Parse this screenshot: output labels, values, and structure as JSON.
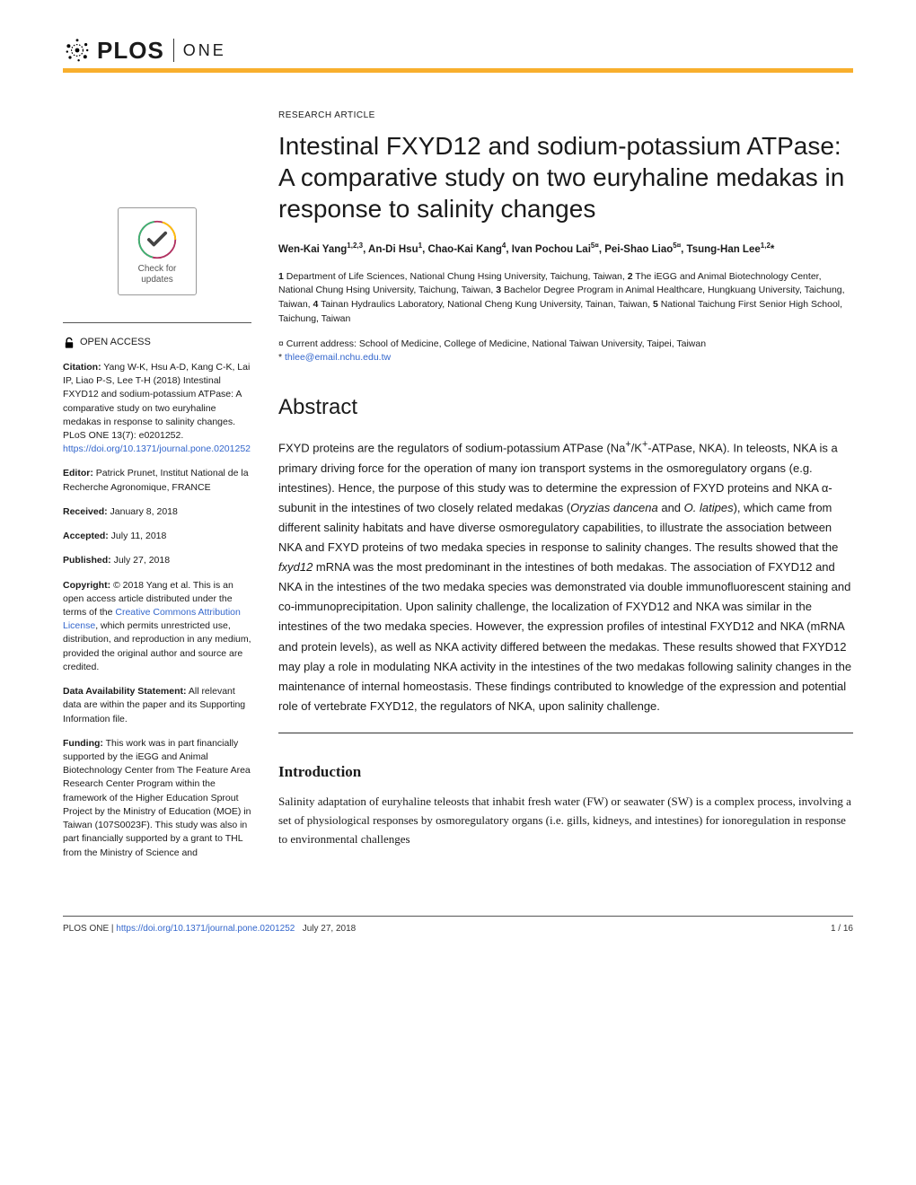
{
  "journal": {
    "brand": "PLOS",
    "sub": "ONE"
  },
  "article": {
    "type": "RESEARCH ARTICLE",
    "title": "Intestinal FXYD12 and sodium-potassium ATPase: A comparative study on two euryhaline medakas in response to salinity changes",
    "authors_html": "Wen-Kai Yang<sup>1,2,3</sup>, An-Di Hsu<sup>1</sup>, Chao-Kai Kang<sup>4</sup>, Ivan Pochou Lai<sup>5¤</sup>, Pei-Shao Liao<sup>5¤</sup>, Tsung-Han Lee<sup>1,2</sup>*",
    "affiliations_html": "<b>1</b> Department of Life Sciences, National Chung Hsing University, Taichung, Taiwan, <b>2</b> The iEGG and Animal Biotechnology Center, National Chung Hsing University, Taichung, Taiwan, <b>3</b> Bachelor Degree Program in Animal Healthcare, Hungkuang University, Taichung, Taiwan, <b>4</b> Tainan Hydraulics Laboratory, National Cheng Kung University, Tainan, Taiwan, <b>5</b> National Taichung First Senior High School, Taichung, Taiwan",
    "current_address": "¤ Current address: School of Medicine, College of Medicine, National Taiwan University, Taipei, Taiwan",
    "corresponding": "* ",
    "corresponding_email": "thlee@email.nchu.edu.tw"
  },
  "sidebar": {
    "check_updates": "Check for updates",
    "open_access": "OPEN ACCESS",
    "citation_label": "Citation:",
    "citation_text": " Yang W-K, Hsu A-D, Kang C-K, Lai IP, Liao P-S, Lee T-H (2018) Intestinal FXYD12 and sodium-potassium ATPase: A comparative study on two euryhaline medakas in response to salinity changes. PLoS ONE 13(7): e0201252. ",
    "citation_link": "https://doi.org/10.1371/journal.pone.0201252",
    "editor_label": "Editor:",
    "editor_text": " Patrick Prunet, Institut National de la Recherche Agronomique, FRANCE",
    "received_label": "Received:",
    "received_text": " January 8, 2018",
    "accepted_label": "Accepted:",
    "accepted_text": " July 11, 2018",
    "published_label": "Published:",
    "published_text": " July 27, 2018",
    "copyright_label": "Copyright:",
    "copyright_text": " © 2018 Yang et al. This is an open access article distributed under the terms of the ",
    "copyright_link": "Creative Commons Attribution License",
    "copyright_tail": ", which permits unrestricted use, distribution, and reproduction in any medium, provided the original author and source are credited.",
    "data_label": "Data Availability Statement:",
    "data_text": " All relevant data are within the paper and its Supporting Information file.",
    "funding_label": "Funding:",
    "funding_text": " This work was in part financially supported by the iEGG and Animal Biotechnology Center from The Feature Area Research Center Program within the framework of the Higher Education Sprout Project by the Ministry of Education (MOE) in Taiwan (107S0023F). This study was also in part financially supported by a grant to THL from the Ministry of Science and"
  },
  "abstract": {
    "heading": "Abstract",
    "text": "FXYD proteins are the regulators of sodium-potassium ATPase (Na<sup>+</sup>/K<sup>+</sup>-ATPase, NKA). In teleosts, NKA is a primary driving force for the operation of many ion transport systems in the osmoregulatory organs (e.g. intestines). Hence, the purpose of this study was to determine the expression of FXYD proteins and NKA α-subunit in the intestines of two closely related medakas (<i>Oryzias dancena</i> and <i>O. latipes</i>), which came from different salinity habitats and have diverse osmoregulatory capabilities, to illustrate the association between NKA and FXYD proteins of two medaka species in response to salinity changes. The results showed that the <i>fxyd12</i> mRNA was the most predominant in the intestines of both medakas. The association of FXYD12 and NKA in the intestines of the two medaka species was demonstrated via double immunofluorescent staining and co-immunoprecipitation. Upon salinity challenge, the localization of FXYD12 and NKA was similar in the intestines of the two medaka species. However, the expression profiles of intestinal FXYD12 and NKA (mRNA and protein levels), as well as NKA activity differed between the medakas. These results showed that FXYD12 may play a role in modulating NKA activity in the intestines of the two medakas following salinity changes in the maintenance of internal homeostasis. These findings contributed to knowledge of the expression and potential role of vertebrate FXYD12, the regulators of NKA, upon salinity challenge."
  },
  "introduction": {
    "heading": "Introduction",
    "text": "Salinity adaptation of euryhaline teleosts that inhabit fresh water (FW) or seawater (SW) is a complex process, involving a set of physiological responses by osmoregulatory organs (i.e. gills, kidneys, and intestines) for ionoregulation in response to environmental challenges"
  },
  "footer": {
    "journal": "PLOS ONE | ",
    "doi": "https://doi.org/10.1371/journal.pone.0201252",
    "date": "July 27, 2018",
    "page": "1 / 16"
  }
}
